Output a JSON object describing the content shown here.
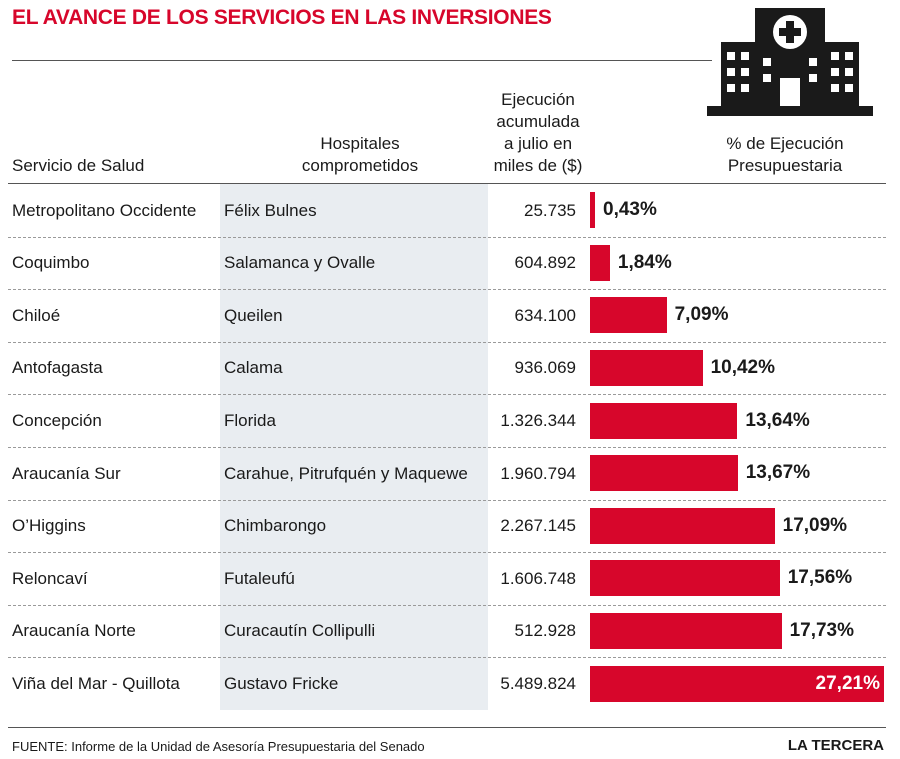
{
  "title": "EL AVANCE DE LOS SERVICIOS EN LAS INVERSIONES",
  "headers": {
    "servicio": "Servicio de Salud",
    "hospitales": [
      "Hospitales",
      "comprometidos"
    ],
    "ejecucion": [
      "Ejecución",
      "acumulada",
      "a julio en",
      "miles de ($)"
    ],
    "porcentaje": [
      "% de Ejecución",
      "Presupuestaria"
    ]
  },
  "icon": "hospital-icon",
  "colors": {
    "bar": "#d7062b",
    "band": "#e9edf1",
    "rule": "#555555",
    "title": "#d7062b"
  },
  "rows": [
    {
      "servicio": "Metropolitano Occidente",
      "hospitales": "Félix Bulnes",
      "ejecucion": "25.735",
      "pct_label": "0,43%"
    },
    {
      "servicio": "Coquimbo",
      "hospitales": "Salamanca y Ovalle",
      "ejecucion": "604.892",
      "pct_label": "1,84%"
    },
    {
      "servicio": "Chiloé",
      "hospitales": "Queilen",
      "ejecucion": "634.100",
      "pct_label": "7,09%"
    },
    {
      "servicio": "Antofagasta",
      "hospitales": "Calama",
      "ejecucion": "936.069",
      "pct_label": "10,42%"
    },
    {
      "servicio": "Concepción",
      "hospitales": "Florida",
      "ejecucion": "1.326.344",
      "pct_label": "13,64%"
    },
    {
      "servicio": "Araucanía Sur",
      "hospitales": "Carahue, Pitrufquén y Maquewe",
      "ejecucion": "1.960.794",
      "pct_label": "13,67%"
    },
    {
      "servicio": "O’Higgins",
      "hospitales": "Chimbarongo",
      "ejecucion": "2.267.145",
      "pct_label": "17,09%"
    },
    {
      "servicio": "Reloncaví",
      "hospitales": "Futaleufú",
      "ejecucion": "1.606.748",
      "pct_label": "17,56%"
    },
    {
      "servicio": "Araucanía Norte",
      "hospitales": "Curacautín Collipulli",
      "ejecucion": "512.928",
      "pct_label": "17,73%"
    },
    {
      "servicio": "Viña del Mar - Quillota",
      "hospitales": "Gustavo Fricke",
      "ejecucion": "5.489.824",
      "pct_label": "27,21%"
    }
  ],
  "chart_data": {
    "type": "bar",
    "orientation": "horizontal",
    "categories": [
      "Metropolitano Occidente",
      "Coquimbo",
      "Chiloé",
      "Antofagasta",
      "Concepción",
      "Araucanía Sur",
      "O’Higgins",
      "Reloncaví",
      "Araucanía Norte",
      "Viña del Mar - Quillota"
    ],
    "values": [
      0.43,
      1.84,
      7.09,
      10.42,
      13.64,
      13.67,
      17.09,
      17.56,
      17.73,
      27.21
    ],
    "unit": "%",
    "xlim": [
      0,
      27.21
    ],
    "grid": false,
    "legend": "none"
  },
  "footer": {
    "source": "FUENTE: Informe de la Unidad de Asesoría Presupuestaria del Senado",
    "brand": "LA TERCERA"
  }
}
